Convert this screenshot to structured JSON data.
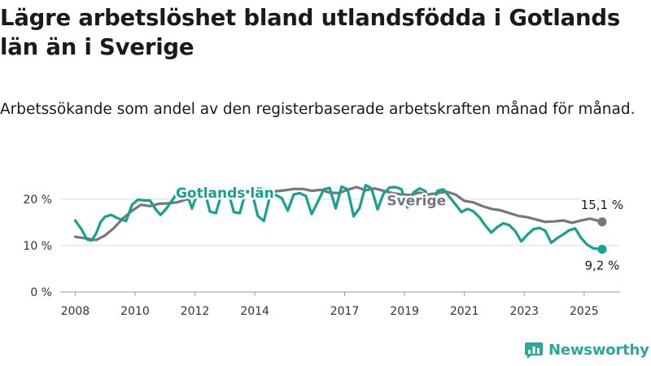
{
  "title": "Lägre arbetslöshet bland utlandsfödda i Gotlands län än i Sverige",
  "subtitle": "Arbetssökande som andel av den registerbaserade arbetskraften månad för månad.",
  "brand": {
    "name": "Newsworthy",
    "color": "#2aa89a",
    "icon": "newsworthy-logo-icon"
  },
  "chart_data": {
    "type": "line",
    "xlim": [
      2007.5,
      2026.2
    ],
    "ylim": [
      0,
      24
    ],
    "grid": true,
    "x_ticks": [
      {
        "value": 2008,
        "label": "2008"
      },
      {
        "value": 2010,
        "label": "2010"
      },
      {
        "value": 2012,
        "label": "2012"
      },
      {
        "value": 2014,
        "label": "2014"
      },
      {
        "value": 2017,
        "label": "2017"
      },
      {
        "value": 2019,
        "label": "2019"
      },
      {
        "value": 2021,
        "label": "2021"
      },
      {
        "value": 2023,
        "label": "2023"
      },
      {
        "value": 2025,
        "label": "2025"
      }
    ],
    "y_ticks": [
      {
        "value": 0,
        "label": "0 %"
      },
      {
        "value": 10,
        "label": "10 %"
      },
      {
        "value": 20,
        "label": "20 %"
      }
    ],
    "series": [
      {
        "name": "Sverige",
        "color": "#77767b",
        "end_label": "15,1 %",
        "x": [
          2008.0,
          2008.4,
          2008.7,
          2009.0,
          2009.3,
          2009.6,
          2009.9,
          2010.2,
          2010.5,
          2010.8,
          2011.1,
          2011.4,
          2011.7,
          2012.0,
          2012.3,
          2012.6,
          2012.9,
          2013.2,
          2013.5,
          2013.8,
          2014.1,
          2014.4,
          2014.7,
          2015.0,
          2015.3,
          2015.6,
          2015.9,
          2016.2,
          2016.5,
          2016.8,
          2017.1,
          2017.4,
          2017.7,
          2018.0,
          2018.3,
          2018.6,
          2018.9,
          2019.2,
          2019.5,
          2019.8,
          2020.1,
          2020.4,
          2020.7,
          2021.0,
          2021.3,
          2021.6,
          2021.9,
          2022.2,
          2022.5,
          2022.8,
          2023.1,
          2023.4,
          2023.7,
          2024.0,
          2024.3,
          2024.6,
          2024.9,
          2025.2,
          2025.6
        ],
        "values": [
          11.9,
          11.5,
          11.2,
          12.2,
          13.8,
          15.9,
          17.5,
          18.8,
          18.5,
          19.0,
          19.1,
          19.3,
          19.9,
          20.3,
          20.8,
          21.3,
          20.6,
          20.2,
          21.1,
          21.6,
          21.1,
          21.2,
          21.7,
          21.9,
          22.2,
          22.2,
          21.8,
          22.0,
          21.4,
          21.3,
          22.0,
          22.6,
          21.9,
          22.3,
          21.8,
          21.3,
          21.0,
          20.9,
          21.4,
          21.0,
          21.3,
          21.6,
          21.0,
          19.6,
          19.3,
          18.5,
          17.9,
          17.6,
          17.0,
          16.4,
          16.1,
          15.6,
          15.1,
          15.2,
          15.4,
          14.9,
          15.4,
          15.8,
          15.1
        ]
      },
      {
        "name": "Gotlands län",
        "color": "#16a191",
        "end_label": "9,2 %",
        "x": [
          2008.0,
          2008.2,
          2008.4,
          2008.55,
          2008.7,
          2008.85,
          2009.0,
          2009.2,
          2009.45,
          2009.7,
          2009.9,
          2010.1,
          2010.3,
          2010.5,
          2010.7,
          2010.85,
          2011.05,
          2011.3,
          2011.5,
          2011.7,
          2011.9,
          2012.1,
          2012.3,
          2012.5,
          2012.7,
          2012.9,
          2013.1,
          2013.3,
          2013.5,
          2013.7,
          2013.9,
          2014.1,
          2014.3,
          2014.5,
          2014.7,
          2014.9,
          2015.1,
          2015.3,
          2015.5,
          2015.7,
          2015.9,
          2016.1,
          2016.3,
          2016.5,
          2016.7,
          2016.9,
          2017.1,
          2017.3,
          2017.5,
          2017.7,
          2017.9,
          2018.1,
          2018.3,
          2018.5,
          2018.7,
          2018.9,
          2019.1,
          2019.3,
          2019.5,
          2019.7,
          2019.9,
          2020.1,
          2020.3,
          2020.5,
          2020.7,
          2020.9,
          2021.1,
          2021.3,
          2021.5,
          2021.7,
          2021.9,
          2022.1,
          2022.3,
          2022.5,
          2022.7,
          2022.9,
          2023.1,
          2023.3,
          2023.5,
          2023.7,
          2023.9,
          2024.1,
          2024.3,
          2024.5,
          2024.7,
          2024.9,
          2025.1,
          2025.3,
          2025.6
        ],
        "values": [
          15.4,
          13.6,
          11.3,
          11.1,
          12.6,
          15.1,
          16.2,
          16.6,
          15.8,
          15.3,
          18.8,
          19.9,
          19.7,
          19.7,
          17.7,
          16.6,
          18.0,
          20.3,
          22.1,
          21.7,
          18.0,
          21.6,
          22.3,
          17.3,
          17.0,
          21.5,
          21.9,
          17.2,
          17.0,
          21.7,
          21.6,
          16.4,
          15.3,
          20.5,
          20.9,
          20.2,
          17.5,
          21.0,
          21.3,
          20.7,
          16.8,
          19.4,
          22.1,
          22.4,
          18.0,
          22.7,
          22.1,
          16.3,
          18.1,
          23.0,
          22.3,
          17.8,
          21.2,
          22.5,
          22.6,
          22.1,
          18.2,
          21.4,
          22.3,
          21.7,
          18.0,
          21.8,
          22.1,
          20.5,
          18.9,
          17.2,
          17.9,
          17.4,
          16.1,
          14.3,
          12.8,
          14.0,
          14.8,
          14.4,
          13.1,
          10.9,
          12.3,
          13.5,
          13.8,
          13.2,
          10.6,
          11.6,
          12.4,
          13.3,
          13.7,
          11.6,
          10.2,
          9.4,
          9.2
        ]
      }
    ]
  }
}
